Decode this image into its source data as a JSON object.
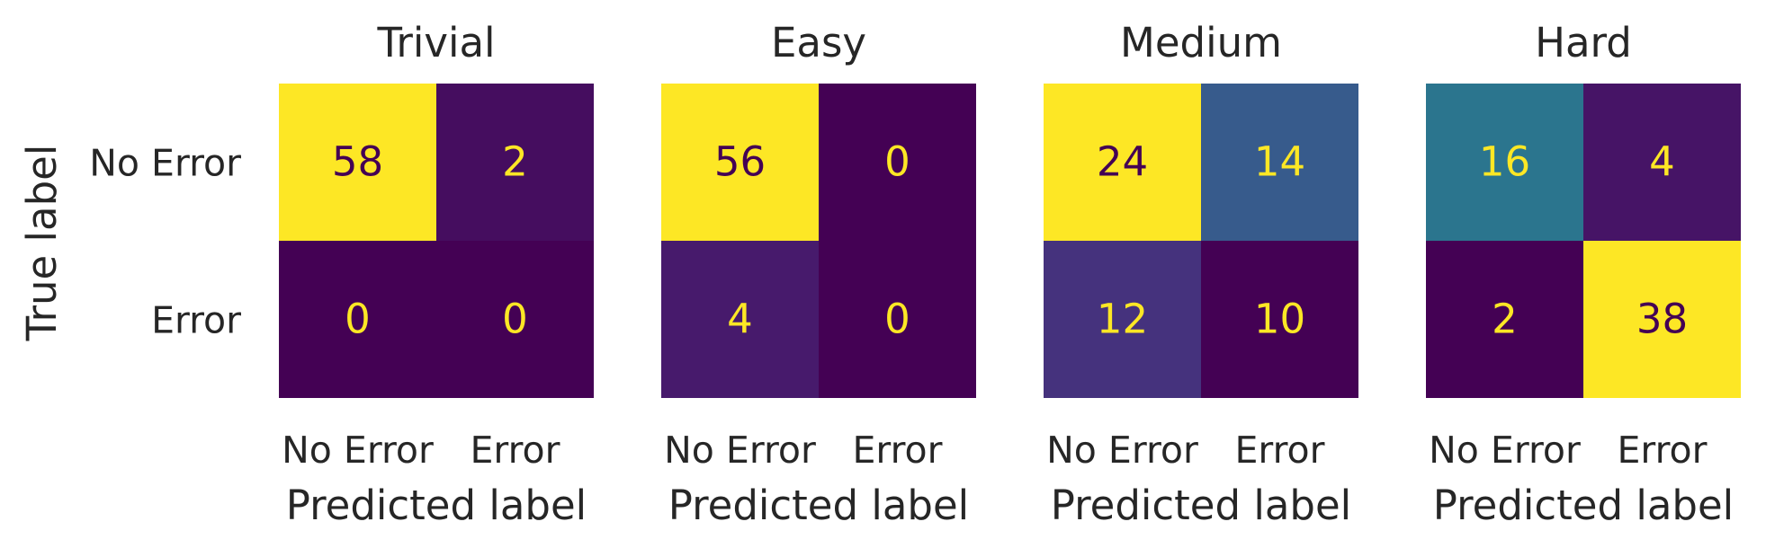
{
  "chart_data": {
    "type": "heatmap",
    "colormap": "viridis",
    "ylabel": "True label",
    "xlabel": "Predicted label",
    "categories": [
      "No Error",
      "Error"
    ],
    "panels": [
      {
        "title": "Trivial",
        "matrix": [
          [
            58,
            2
          ],
          [
            0,
            0
          ]
        ]
      },
      {
        "title": "Easy",
        "matrix": [
          [
            56,
            0
          ],
          [
            4,
            0
          ]
        ]
      },
      {
        "title": "Medium",
        "matrix": [
          [
            24,
            14
          ],
          [
            12,
            10
          ]
        ]
      },
      {
        "title": "Hard",
        "matrix": [
          [
            16,
            4
          ],
          [
            2,
            38
          ]
        ]
      }
    ]
  },
  "colors": {
    "viridis_low": "#440154",
    "viridis_high": "#fde725",
    "text": "#262626"
  }
}
